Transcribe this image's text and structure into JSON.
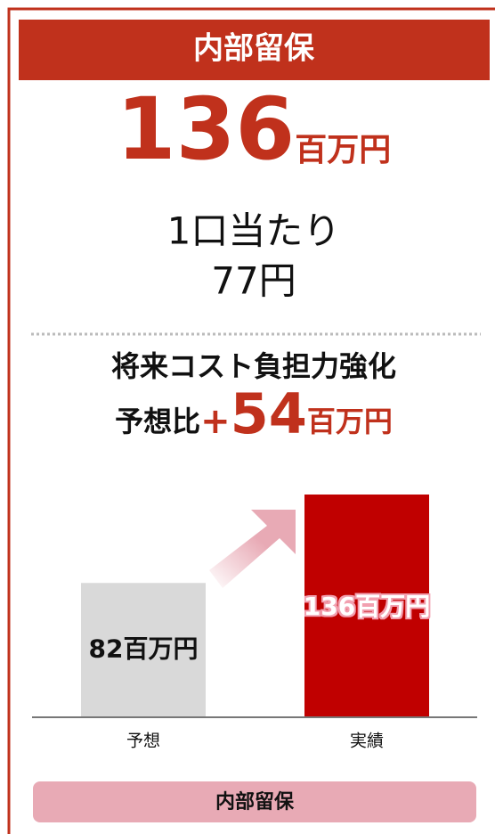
{
  "header": {
    "title": "内部留保"
  },
  "headline": {
    "value": 136,
    "unit": "百万円"
  },
  "per_unit": {
    "label": "1口当たり",
    "value": "77円"
  },
  "subheading": "将来コスト負担力強化",
  "comparison": {
    "label": "予想比",
    "sign": "+",
    "value": 54,
    "unit": "百万円"
  },
  "chart_data": {
    "type": "bar",
    "categories": [
      "予想",
      "実績"
    ],
    "values": [
      82,
      136
    ],
    "value_labels": [
      "82百万円",
      "136百万円"
    ],
    "colors": [
      "#d9d9d9",
      "#c00000"
    ],
    "ylim": [
      0,
      136
    ]
  },
  "footer": {
    "label": "内部留保"
  }
}
